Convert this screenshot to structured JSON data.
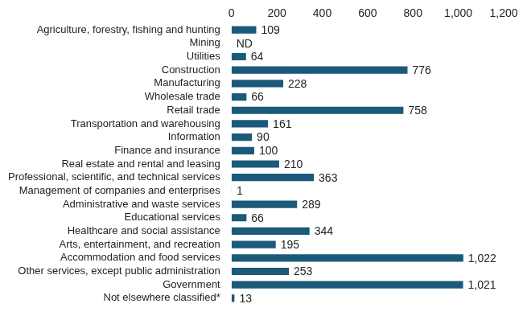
{
  "chart_data": {
    "type": "bar",
    "orientation": "horizontal",
    "categories": [
      "Agriculture, forestry, fishing and hunting",
      "Mining",
      "Utilities",
      "Construction",
      "Manufacturing",
      "Wholesale trade",
      "Retail trade",
      "Transportation and warehousing",
      "Information",
      "Finance and insurance",
      "Real estate and rental and leasing",
      "Professional, scientific, and technical services",
      "Management of companies and enterprises",
      "Administrative and waste services",
      "Educational services",
      "Healthcare and social assistance",
      "Arts, entertainment, and recreation",
      "Accommodation and food services",
      "Other services, except public administration",
      "Government",
      "Not elsewhere classified*"
    ],
    "values": [
      109,
      null,
      64,
      776,
      228,
      66,
      758,
      161,
      90,
      100,
      210,
      363,
      1,
      289,
      66,
      344,
      195,
      1022,
      253,
      1021,
      13
    ],
    "value_labels": [
      "109",
      "ND",
      "64",
      "776",
      "228",
      "66",
      "758",
      "161",
      "90",
      "100",
      "210",
      "363",
      "1",
      "289",
      "66",
      "344",
      "195",
      "1,022",
      "253",
      "1,021",
      "13"
    ],
    "color": "#1b5a7a",
    "xlim": [
      0,
      1200
    ],
    "xticks": [
      0,
      200,
      400,
      600,
      800,
      {
        "value": 1000,
        "label": "1,000"
      },
      {
        "value": 1200,
        "label": "1,200"
      }
    ],
    "grid": false,
    "data_labels": true
  }
}
